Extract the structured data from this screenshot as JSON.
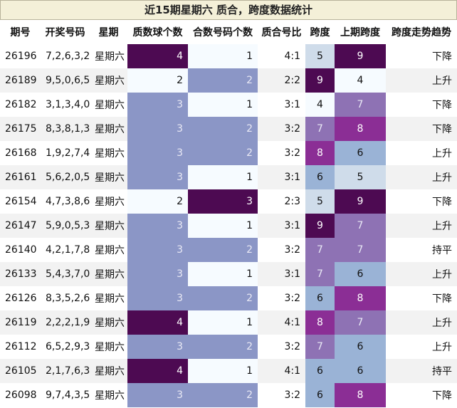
{
  "title": "近15期星期六 质合，跨度数据统计",
  "headers": [
    "期号",
    "开奖号码",
    "星期",
    "质数球个数",
    "合数号码个数",
    "质合号比",
    "跨度",
    "上期跨度",
    "跨度走势趋势"
  ],
  "rows": [
    {
      "issue": "26196",
      "nums": "7,2,6,3,2",
      "weekday": "星期六",
      "prime": "4",
      "composite": "1",
      "ratio": "4:1",
      "span": "5",
      "prev_span": "9",
      "trend": "下降"
    },
    {
      "issue": "26189",
      "nums": "9,5,0,6,5",
      "weekday": "星期六",
      "prime": "2",
      "composite": "2",
      "ratio": "2:2",
      "span": "9",
      "prev_span": "4",
      "trend": "上升"
    },
    {
      "issue": "26182",
      "nums": "3,1,3,4,0",
      "weekday": "星期六",
      "prime": "3",
      "composite": "1",
      "ratio": "3:1",
      "span": "4",
      "prev_span": "7",
      "trend": "下降"
    },
    {
      "issue": "26175",
      "nums": "8,3,8,1,3",
      "weekday": "星期六",
      "prime": "3",
      "composite": "2",
      "ratio": "3:2",
      "span": "7",
      "prev_span": "8",
      "trend": "下降"
    },
    {
      "issue": "26168",
      "nums": "1,9,2,7,4",
      "weekday": "星期六",
      "prime": "3",
      "composite": "2",
      "ratio": "3:2",
      "span": "8",
      "prev_span": "6",
      "trend": "上升"
    },
    {
      "issue": "26161",
      "nums": "5,6,2,0,5",
      "weekday": "星期六",
      "prime": "3",
      "composite": "1",
      "ratio": "3:1",
      "span": "6",
      "prev_span": "5",
      "trend": "上升"
    },
    {
      "issue": "26154",
      "nums": "4,7,3,8,6",
      "weekday": "星期六",
      "prime": "2",
      "composite": "3",
      "ratio": "2:3",
      "span": "5",
      "prev_span": "9",
      "trend": "下降"
    },
    {
      "issue": "26147",
      "nums": "5,9,0,5,3",
      "weekday": "星期六",
      "prime": "3",
      "composite": "1",
      "ratio": "3:1",
      "span": "9",
      "prev_span": "7",
      "trend": "上升"
    },
    {
      "issue": "26140",
      "nums": "4,2,1,7,8",
      "weekday": "星期六",
      "prime": "3",
      "composite": "2",
      "ratio": "3:2",
      "span": "7",
      "prev_span": "7",
      "trend": "持平"
    },
    {
      "issue": "26133",
      "nums": "5,4,3,7,0",
      "weekday": "星期六",
      "prime": "3",
      "composite": "1",
      "ratio": "3:1",
      "span": "7",
      "prev_span": "6",
      "trend": "上升"
    },
    {
      "issue": "26126",
      "nums": "8,3,5,2,6",
      "weekday": "星期六",
      "prime": "3",
      "composite": "2",
      "ratio": "3:2",
      "span": "6",
      "prev_span": "8",
      "trend": "下降"
    },
    {
      "issue": "26119",
      "nums": "2,2,2,1,9",
      "weekday": "星期六",
      "prime": "4",
      "composite": "1",
      "ratio": "4:1",
      "span": "8",
      "prev_span": "7",
      "trend": "上升"
    },
    {
      "issue": "26112",
      "nums": "6,5,2,9,3",
      "weekday": "星期六",
      "prime": "3",
      "composite": "2",
      "ratio": "3:2",
      "span": "7",
      "prev_span": "6",
      "trend": "上升"
    },
    {
      "issue": "26105",
      "nums": "2,1,7,6,3",
      "weekday": "星期六",
      "prime": "4",
      "composite": "1",
      "ratio": "4:1",
      "span": "6",
      "prev_span": "6",
      "trend": "持平"
    },
    {
      "issue": "26098",
      "nums": "9,7,4,3,5",
      "weekday": "星期六",
      "prime": "3",
      "composite": "2",
      "ratio": "3:2",
      "span": "6",
      "prev_span": "8",
      "trend": "下降"
    }
  ],
  "colors": {
    "prime": {
      "2": "#f6fbff",
      "3": "#8b96c6",
      "4": "#4d0a52"
    },
    "composite": {
      "1": "#f6fbff",
      "2": "#8b96c6",
      "3": "#4d0a52"
    },
    "span": {
      "4": "#f6fbff",
      "5": "#cfdcea",
      "6": "#9ab3d6",
      "7": "#8e72b4",
      "8": "#8b2e95",
      "9": "#4d0a52"
    },
    "prev_span": {
      "4": "#f6fbff",
      "5": "#cfdcea",
      "6": "#9ab3d6",
      "7": "#8e72b4",
      "8": "#8b2e95",
      "9": "#4d0a52"
    },
    "light_text": "#111111",
    "dark_text": "#ffffff",
    "mid_text": "#e8e8f4"
  }
}
